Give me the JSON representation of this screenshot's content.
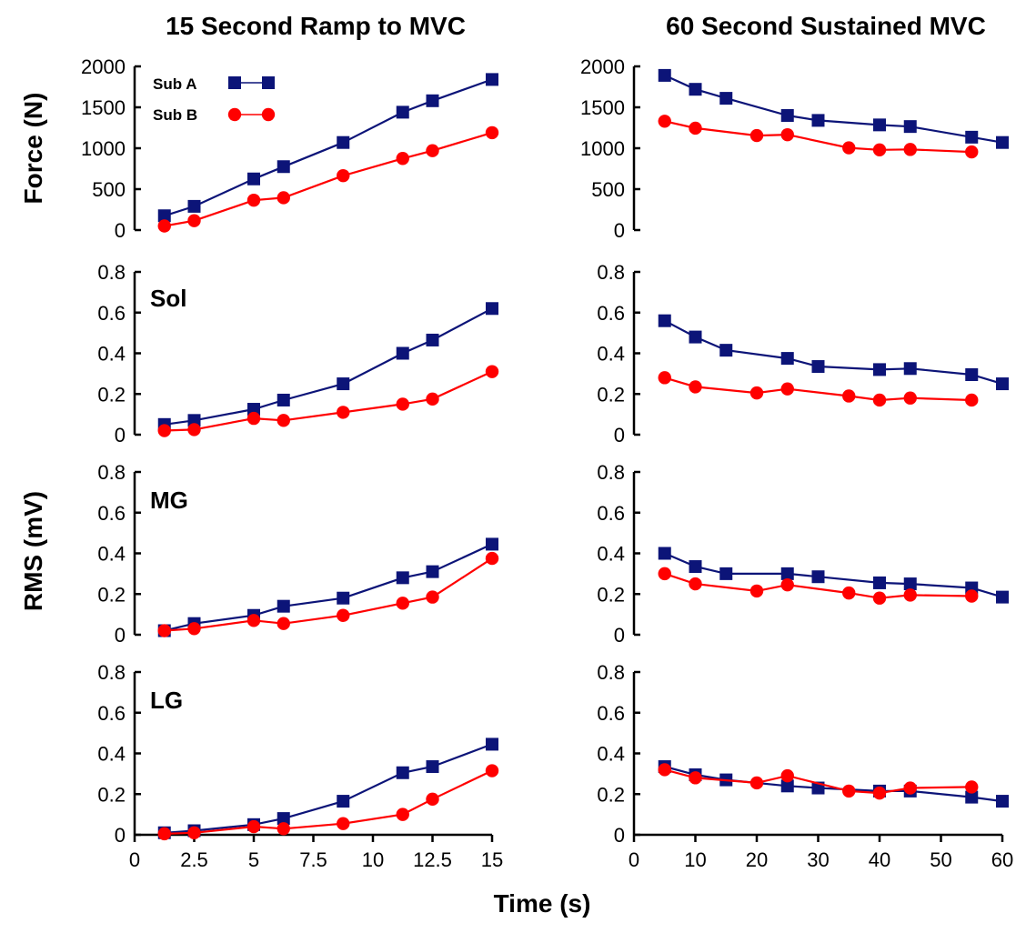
{
  "titles": {
    "left": "15 Second Ramp to MVC",
    "right": "60 Second Sustained MVC"
  },
  "ylabel_force": "Force (N)",
  "ylabel_rms": "RMS (mV)",
  "xlabel": "Time (s)",
  "legend": {
    "sub_a": "Sub A",
    "sub_b": "Sub B"
  },
  "colors": {
    "sub_a": "#0c1478",
    "sub_b": "#ff0000"
  },
  "chart_data": [
    {
      "type": "line",
      "column": "ramp",
      "row": "force",
      "label": "",
      "ylim": [
        0,
        2000
      ],
      "yticks": [
        0,
        500,
        1000,
        1500,
        2000
      ],
      "xlim": [
        0,
        15
      ],
      "xticks": [
        0,
        2.5,
        5,
        7.5,
        10,
        12.5,
        15
      ],
      "series": [
        {
          "name": "Sub A",
          "x": [
            1.25,
            2.5,
            5,
            6.25,
            8.75,
            11.25,
            12.5,
            15
          ],
          "values": [
            175,
            290,
            625,
            775,
            1070,
            1440,
            1580,
            1840
          ]
        },
        {
          "name": "Sub B",
          "x": [
            1.25,
            2.5,
            5,
            6.25,
            8.75,
            11.25,
            12.5,
            15
          ],
          "values": [
            50,
            115,
            365,
            395,
            665,
            875,
            970,
            1190
          ]
        }
      ]
    },
    {
      "type": "line",
      "column": "sustained",
      "row": "force",
      "label": "",
      "ylim": [
        0,
        2000
      ],
      "yticks": [
        0,
        500,
        1000,
        1500,
        2000
      ],
      "xlim": [
        0,
        60
      ],
      "xticks": [
        0,
        10,
        20,
        30,
        40,
        50,
        60
      ],
      "series": [
        {
          "name": "Sub A",
          "x": [
            5,
            10,
            15,
            25,
            30,
            40,
            45,
            55,
            60
          ],
          "values": [
            1890,
            1720,
            1610,
            1400,
            1340,
            1285,
            1265,
            1135,
            1070
          ]
        },
        {
          "name": "Sub B",
          "x": [
            5,
            10,
            20,
            25,
            35,
            40,
            45,
            55
          ],
          "values": [
            1330,
            1245,
            1155,
            1165,
            1005,
            980,
            985,
            955
          ]
        }
      ]
    },
    {
      "type": "line",
      "column": "ramp",
      "row": "sol",
      "label": "Sol",
      "ylim": [
        0,
        0.8
      ],
      "yticks": [
        0,
        0.2,
        0.4,
        0.6,
        0.8
      ],
      "xlim": [
        0,
        15
      ],
      "xticks": [
        0,
        2.5,
        5,
        7.5,
        10,
        12.5,
        15
      ],
      "series": [
        {
          "name": "Sub A",
          "x": [
            1.25,
            2.5,
            5,
            6.25,
            8.75,
            11.25,
            12.5,
            15
          ],
          "values": [
            0.05,
            0.07,
            0.125,
            0.17,
            0.25,
            0.4,
            0.465,
            0.62
          ]
        },
        {
          "name": "Sub B",
          "x": [
            1.25,
            2.5,
            5,
            6.25,
            8.75,
            11.25,
            12.5,
            15
          ],
          "values": [
            0.02,
            0.025,
            0.08,
            0.07,
            0.11,
            0.15,
            0.175,
            0.31
          ]
        }
      ]
    },
    {
      "type": "line",
      "column": "sustained",
      "row": "sol",
      "label": "",
      "ylim": [
        0,
        0.8
      ],
      "yticks": [
        0,
        0.2,
        0.4,
        0.6,
        0.8
      ],
      "xlim": [
        0,
        60
      ],
      "xticks": [
        0,
        10,
        20,
        30,
        40,
        50,
        60
      ],
      "series": [
        {
          "name": "Sub A",
          "x": [
            5,
            10,
            15,
            25,
            30,
            40,
            45,
            55,
            60
          ],
          "values": [
            0.56,
            0.48,
            0.415,
            0.375,
            0.335,
            0.32,
            0.325,
            0.295,
            0.25
          ]
        },
        {
          "name": "Sub B",
          "x": [
            5,
            10,
            20,
            25,
            35,
            40,
            45,
            55
          ],
          "values": [
            0.28,
            0.235,
            0.205,
            0.225,
            0.19,
            0.17,
            0.18,
            0.17
          ]
        }
      ]
    },
    {
      "type": "line",
      "column": "ramp",
      "row": "mg",
      "label": "MG",
      "ylim": [
        0,
        0.8
      ],
      "yticks": [
        0,
        0.2,
        0.4,
        0.6,
        0.8
      ],
      "xlim": [
        0,
        15
      ],
      "xticks": [
        0,
        2.5,
        5,
        7.5,
        10,
        12.5,
        15
      ],
      "series": [
        {
          "name": "Sub A",
          "x": [
            1.25,
            2.5,
            5,
            6.25,
            8.75,
            11.25,
            12.5,
            15
          ],
          "values": [
            0.02,
            0.055,
            0.095,
            0.14,
            0.18,
            0.28,
            0.31,
            0.445
          ]
        },
        {
          "name": "Sub B",
          "x": [
            1.25,
            2.5,
            5,
            6.25,
            8.75,
            11.25,
            12.5,
            15
          ],
          "values": [
            0.02,
            0.03,
            0.07,
            0.055,
            0.095,
            0.155,
            0.185,
            0.375
          ]
        }
      ]
    },
    {
      "type": "line",
      "column": "sustained",
      "row": "mg",
      "label": "",
      "ylim": [
        0,
        0.8
      ],
      "yticks": [
        0,
        0.2,
        0.4,
        0.6,
        0.8
      ],
      "xlim": [
        0,
        60
      ],
      "xticks": [
        0,
        10,
        20,
        30,
        40,
        50,
        60
      ],
      "series": [
        {
          "name": "Sub A",
          "x": [
            5,
            10,
            15,
            25,
            30,
            40,
            45,
            55,
            60
          ],
          "values": [
            0.4,
            0.335,
            0.3,
            0.3,
            0.285,
            0.255,
            0.25,
            0.23,
            0.185
          ]
        },
        {
          "name": "Sub B",
          "x": [
            5,
            10,
            20,
            25,
            35,
            40,
            45,
            55
          ],
          "values": [
            0.3,
            0.25,
            0.215,
            0.245,
            0.205,
            0.18,
            0.195,
            0.19
          ]
        }
      ]
    },
    {
      "type": "line",
      "column": "ramp",
      "row": "lg",
      "label": "LG",
      "ylim": [
        0,
        0.8
      ],
      "yticks": [
        0,
        0.2,
        0.4,
        0.6,
        0.8
      ],
      "xlim": [
        0,
        15
      ],
      "xticks": [
        0,
        2.5,
        5,
        7.5,
        10,
        12.5,
        15
      ],
      "series": [
        {
          "name": "Sub A",
          "x": [
            1.25,
            2.5,
            5,
            6.25,
            8.75,
            11.25,
            12.5,
            15
          ],
          "values": [
            0.01,
            0.02,
            0.05,
            0.08,
            0.165,
            0.305,
            0.335,
            0.445
          ]
        },
        {
          "name": "Sub B",
          "x": [
            1.25,
            2.5,
            5,
            6.25,
            8.75,
            11.25,
            12.5,
            15
          ],
          "values": [
            0.005,
            0.01,
            0.04,
            0.03,
            0.055,
            0.1,
            0.175,
            0.315
          ]
        }
      ]
    },
    {
      "type": "line",
      "column": "sustained",
      "row": "lg",
      "label": "",
      "ylim": [
        0,
        0.8
      ],
      "yticks": [
        0,
        0.2,
        0.4,
        0.6,
        0.8
      ],
      "xlim": [
        0,
        60
      ],
      "xticks": [
        0,
        10,
        20,
        30,
        40,
        50,
        60
      ],
      "series": [
        {
          "name": "Sub A",
          "x": [
            5,
            10,
            15,
            25,
            30,
            40,
            45,
            55,
            60
          ],
          "values": [
            0.335,
            0.295,
            0.27,
            0.24,
            0.23,
            0.215,
            0.215,
            0.185,
            0.165
          ]
        },
        {
          "name": "Sub B",
          "x": [
            5,
            10,
            20,
            25,
            35,
            40,
            45,
            55
          ],
          "values": [
            0.32,
            0.28,
            0.255,
            0.29,
            0.215,
            0.205,
            0.23,
            0.235
          ]
        }
      ]
    }
  ]
}
